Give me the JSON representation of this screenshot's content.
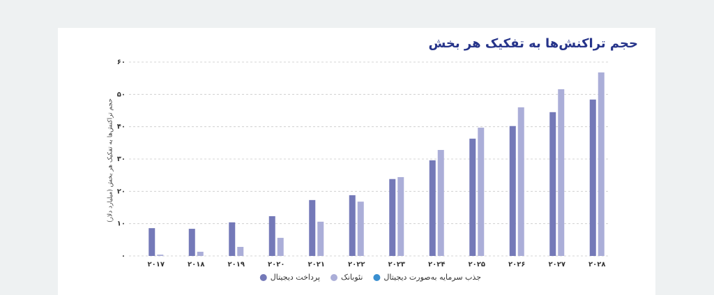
{
  "chart_data": {
    "type": "bar",
    "title": "حجم تراکنش‌ها به تفکیک هر بخش",
    "y_label": "حجم تراکنش‌ها به تفکیک هر بخش (میلیارد دلار)",
    "categories": [
      "۲۰۱۷",
      "۲۰۱۸",
      "۲۰۱۹",
      "۲۰۲۰",
      "۲۰۲۱",
      "۲۰۲۲",
      "۲۰۲۳",
      "۲۰۲۴",
      "۲۰۲۵",
      "۲۰۲۶",
      "۲۰۲۷",
      "۲۰۲۸"
    ],
    "series": [
      {
        "name": "پرداخت دیجیتال",
        "color": "#7479b8",
        "values": [
          8.6,
          8.4,
          10.4,
          12.3,
          17.3,
          18.8,
          23.8,
          29.6,
          36.3,
          40.2,
          44.5,
          48.4
        ]
      },
      {
        "name": "نئوبانک",
        "color": "#abaed8",
        "values": [
          0.4,
          1.3,
          2.8,
          5.6,
          10.6,
          16.8,
          24.4,
          32.8,
          39.7,
          46.0,
          51.6,
          56.8
        ]
      },
      {
        "name": "جذب سرمایه به‌صورت دیجیتال",
        "color": "#3a8fd0",
        "values": [
          null,
          null,
          null,
          null,
          null,
          null,
          null,
          null,
          null,
          null,
          null,
          null
        ]
      }
    ],
    "ylim": [
      0,
      60
    ],
    "yticks": [
      {
        "value": 0,
        "label": "۰"
      },
      {
        "value": 10,
        "label": "۱۰"
      },
      {
        "value": 20,
        "label": "۲۰"
      },
      {
        "value": 30,
        "label": "۳۰"
      },
      {
        "value": 40,
        "label": "۴۰"
      },
      {
        "value": 50,
        "label": "۵۰"
      },
      {
        "value": 60,
        "label": "۶۰"
      }
    ],
    "grid": true
  }
}
